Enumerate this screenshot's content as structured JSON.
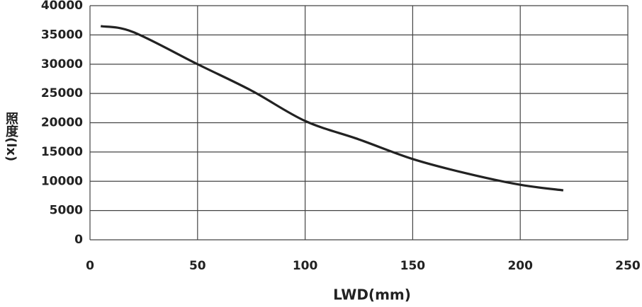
{
  "chart_data": {
    "type": "line",
    "x_label": "LWD(mm)",
    "y_label": "照度(lx)",
    "x": [
      5,
      20,
      50,
      75,
      100,
      125,
      150,
      175,
      200,
      220
    ],
    "series": [
      {
        "name": "照度",
        "color": "#222222",
        "values": [
          36500,
          35500,
          30000,
          25500,
          20300,
          17150,
          13800,
          11350,
          9400,
          8450
        ]
      }
    ],
    "xlim": [
      0,
      250
    ],
    "xticks": [
      0,
      50,
      100,
      150,
      200,
      250
    ],
    "ylim": [
      0,
      40000
    ],
    "yticks": [
      0,
      5000,
      10000,
      15000,
      20000,
      25000,
      30000,
      35000,
      40000
    ],
    "grid": true
  }
}
